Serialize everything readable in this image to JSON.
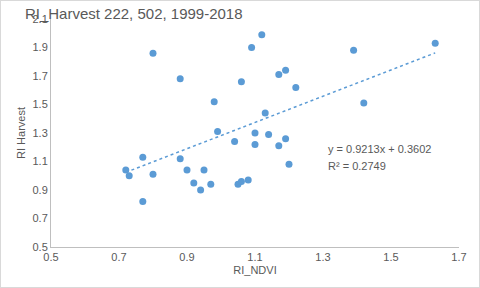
{
  "chart_data": {
    "type": "scatter",
    "title": "RI_Harvest 222, 502, 1999-2018",
    "x_label": "RI_NDVI",
    "y_label": "RI Harvest",
    "xlim": [
      0.5,
      1.7
    ],
    "xticks": [
      0.5,
      0.7,
      0.9,
      1.1,
      1.3,
      1.5,
      1.7
    ],
    "ylim": [
      0.5,
      2.1
    ],
    "yticks": [
      0.5,
      0.7,
      0.9,
      1.1,
      1.3,
      1.5,
      1.7,
      1.9,
      2.1
    ],
    "grid": false,
    "annotations": [
      "y = 0.9213x + 0.3602",
      "R² = 0.2749"
    ],
    "series": [
      {
        "type": "scatter",
        "marker": "circle",
        "color": "#5b9bd5",
        "x": [
          0.72,
          0.73,
          0.77,
          0.77,
          0.8,
          0.8,
          0.88,
          0.88,
          0.9,
          0.92,
          0.94,
          0.95,
          0.97,
          0.98,
          0.99,
          1.04,
          1.05,
          1.06,
          1.06,
          1.08,
          1.09,
          1.1,
          1.1,
          1.12,
          1.13,
          1.14,
          1.17,
          1.17,
          1.19,
          1.19,
          1.2,
          1.22,
          1.39,
          1.42,
          1.63
        ],
        "values": [
          1.04,
          1.0,
          1.13,
          0.82,
          1.86,
          1.01,
          1.68,
          1.12,
          1.04,
          0.95,
          0.9,
          1.04,
          0.94,
          1.52,
          1.31,
          1.24,
          0.94,
          1.66,
          0.96,
          0.97,
          1.9,
          1.3,
          1.22,
          1.99,
          1.44,
          1.29,
          1.21,
          1.71,
          1.74,
          1.26,
          1.08,
          1.62,
          1.88,
          1.51,
          1.93
        ]
      },
      {
        "type": "line",
        "line_style": "dot",
        "color": "#5b9bd5",
        "x": [
          0.72,
          1.63
        ],
        "values": [
          1.024,
          1.862
        ]
      }
    ]
  }
}
